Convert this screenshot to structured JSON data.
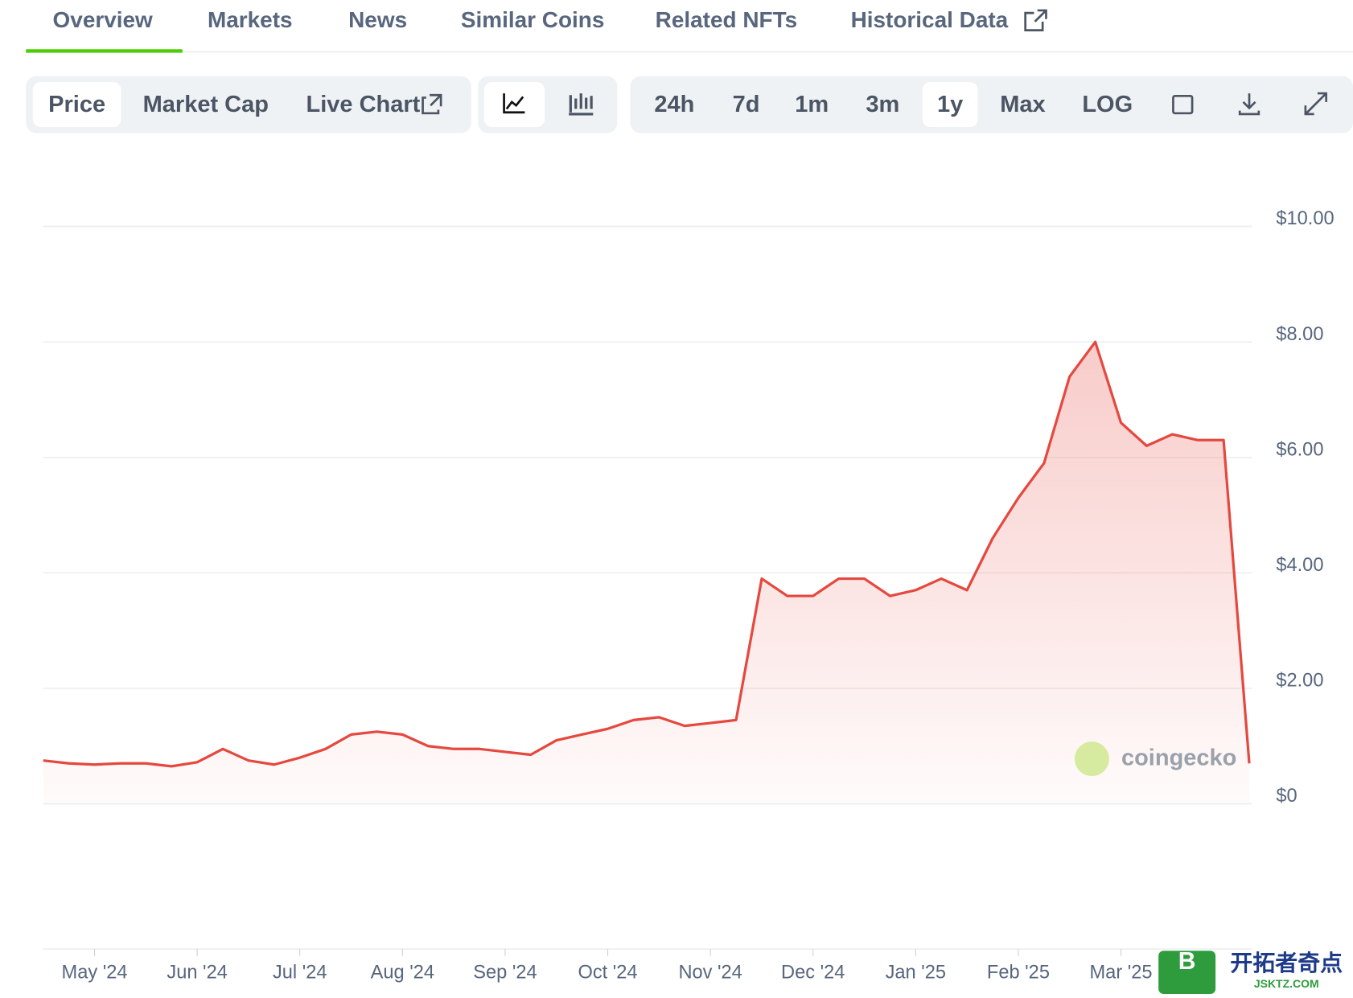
{
  "tabs": [
    "Overview",
    "Markets",
    "News",
    "Similar Coins",
    "Related NFTs",
    "Historical Data"
  ],
  "toolbar": {
    "views": [
      "Price",
      "Market Cap",
      "Live Chart"
    ],
    "ranges": [
      "24h",
      "7d",
      "1m",
      "3m",
      "1y",
      "Max",
      "LOG"
    ]
  },
  "watermark": "coingecko",
  "site_logo": {
    "title": "开拓者奇点",
    "url": "JSKTZ.COM"
  },
  "chart_data": {
    "type": "line",
    "color": "#e5483f",
    "categories": [
      null,
      null,
      "May '24",
      null,
      null,
      null,
      "Jun '24",
      null,
      null,
      null,
      "Jul '24",
      null,
      null,
      null,
      "Aug '24",
      null,
      null,
      null,
      "Sep '24",
      null,
      null,
      null,
      "Oct '24",
      null,
      null,
      null,
      "Nov '24",
      null,
      null,
      null,
      "Dec '24",
      null,
      null,
      null,
      "Jan '25",
      null,
      null,
      null,
      "Feb '25",
      null,
      null,
      null,
      "Mar '25",
      null,
      null,
      null,
      null,
      null
    ],
    "values": [
      0.75,
      0.7,
      0.68,
      0.7,
      0.7,
      0.65,
      0.72,
      0.95,
      0.75,
      0.68,
      0.8,
      0.95,
      1.2,
      1.25,
      1.2,
      1.0,
      0.95,
      0.95,
      0.9,
      0.85,
      1.1,
      1.2,
      1.3,
      1.45,
      1.5,
      1.35,
      1.4,
      1.45,
      3.9,
      3.6,
      3.6,
      3.9,
      3.9,
      3.6,
      3.7,
      3.9,
      3.7,
      4.6,
      5.3,
      5.9,
      7.4,
      8.0,
      6.6,
      6.2,
      6.4,
      6.3,
      6.3,
      0.7
    ],
    "ylim": [
      0,
      10
    ],
    "yticks": [
      {
        "value": 0,
        "label": "$0"
      },
      {
        "value": 2,
        "label": "$2.00"
      },
      {
        "value": 4,
        "label": "$4.00"
      },
      {
        "value": 6,
        "label": "$6.00"
      },
      {
        "value": 8,
        "label": "$8.00"
      },
      {
        "value": 10,
        "label": "$10.00"
      }
    ],
    "grid": true
  }
}
